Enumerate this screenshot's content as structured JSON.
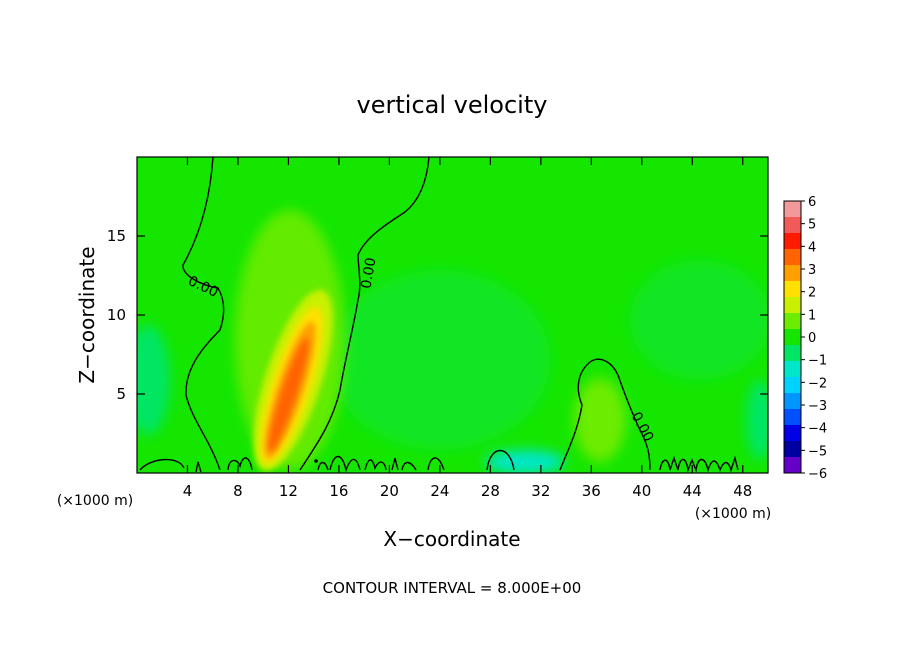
{
  "chart_data": {
    "type": "heatmap",
    "title": "vertical velocity",
    "xlabel": "X−coordinate",
    "ylabel": "Z−coordinate",
    "x_unit_left": "(×1000 m)",
    "x_unit_right": "(×1000 m)",
    "footer": "CONTOUR INTERVAL = 8.000E+00",
    "xlim": [
      0,
      50
    ],
    "ylim": [
      0,
      20
    ],
    "x_ticks": [
      4,
      8,
      12,
      16,
      20,
      24,
      28,
      32,
      36,
      40,
      44,
      48
    ],
    "x_tick_labels": [
      "4",
      "8",
      "12",
      "16",
      "20",
      "24",
      "28",
      "32",
      "36",
      "40",
      "44",
      "48"
    ],
    "y_ticks": [
      5,
      10,
      15
    ],
    "y_tick_labels": [
      "5",
      "10",
      "15"
    ],
    "contour_labels": [
      {
        "text": "0.00",
        "x": 5.5,
        "z": 11.8,
        "angle": 25
      },
      {
        "text": "0.00",
        "x": 18.0,
        "z": 12.5,
        "angle": -80
      },
      {
        "text": "0.00",
        "x": 40.0,
        "z": 3.5,
        "angle": 60
      }
    ],
    "colorbar": {
      "tick_labels": [
        "6",
        "5",
        "4",
        "3",
        "2",
        "1",
        "0",
        "−1",
        "−2",
        "−3",
        "−4",
        "−5",
        "−6"
      ],
      "colors": [
        "#f29a9a",
        "#f25a5a",
        "#ff1a00",
        "#ff6400",
        "#ffa000",
        "#ffe000",
        "#c8f000",
        "#6cec00",
        "#14e600",
        "#00e664",
        "#00e6c8",
        "#00d2ff",
        "#0096ff",
        "#0050ff",
        "#0000e6",
        "#0000a0",
        "#6400c8"
      ]
    },
    "field_features": [
      {
        "name": "updraft",
        "x": 12.0,
        "z": 5.0,
        "peak": 4.0
      },
      {
        "name": "weak updraft",
        "x": 36.5,
        "z": 3.0,
        "peak": 1.0
      },
      {
        "name": "weak downdraft",
        "x": 1.0,
        "z": 4.0,
        "peak": -1.5
      },
      {
        "name": "downdraft",
        "x": 30.5,
        "z": 0.5,
        "peak": -2.0
      }
    ]
  }
}
